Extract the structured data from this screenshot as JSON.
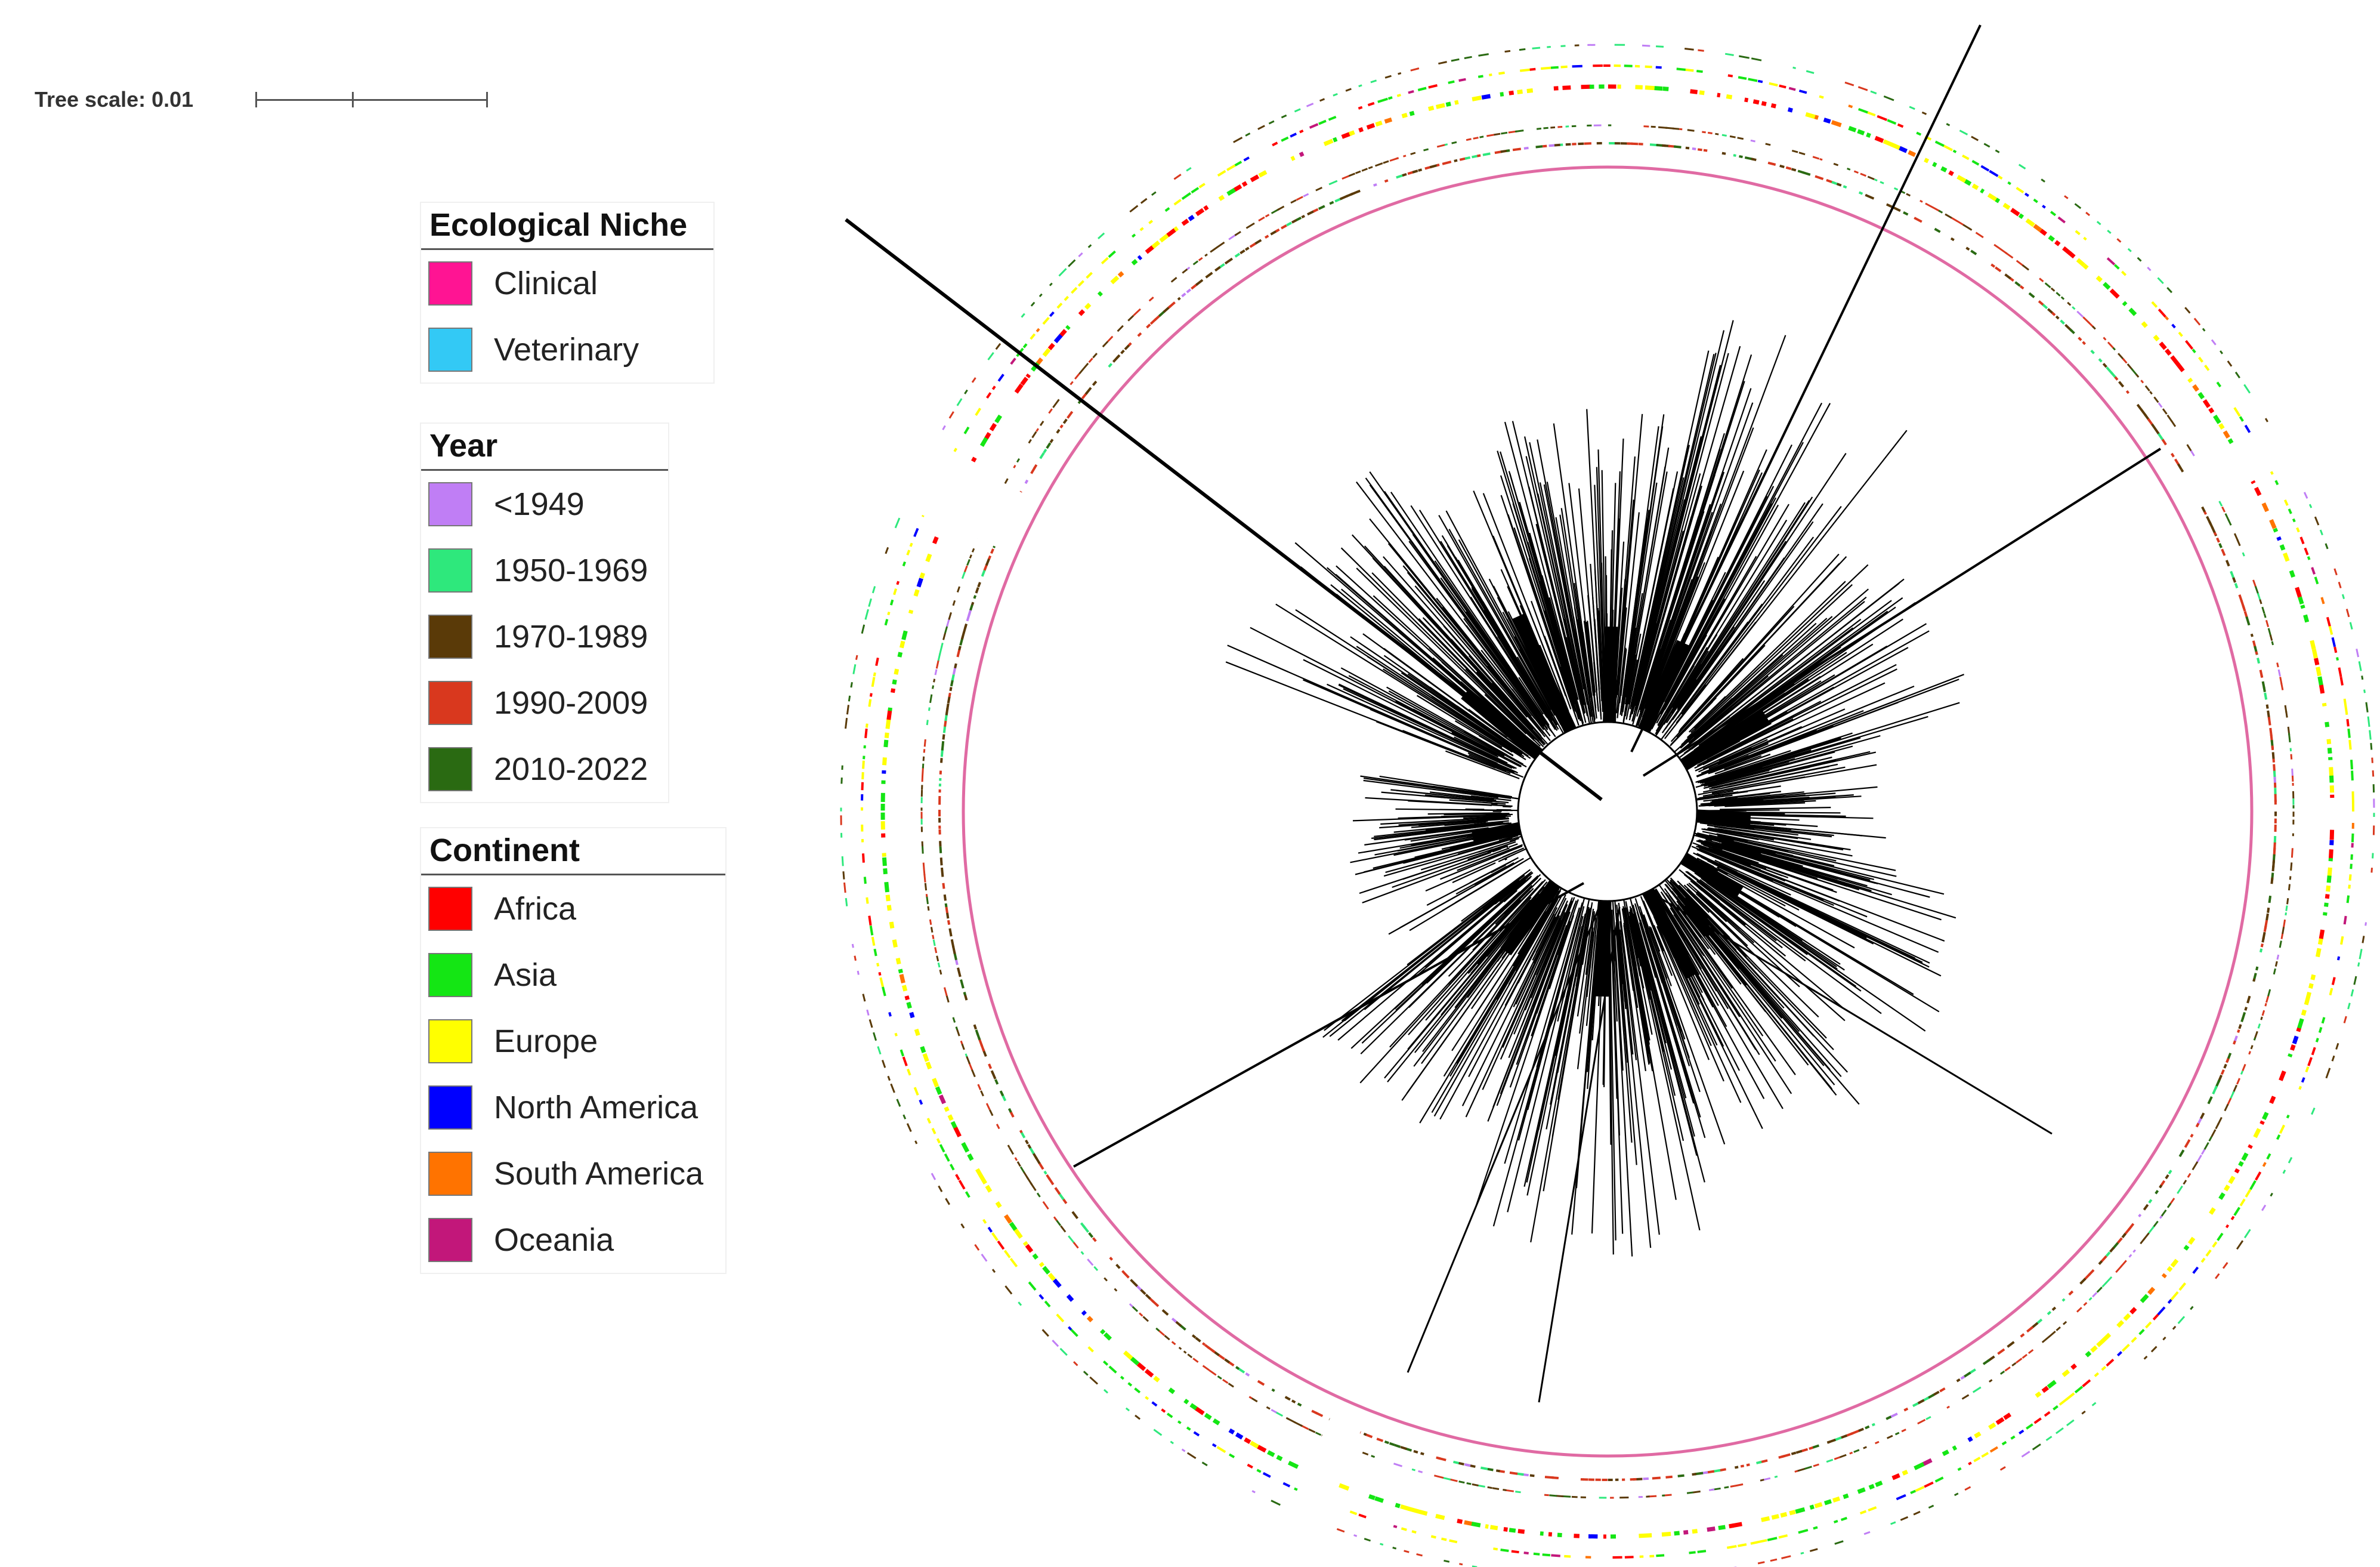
{
  "tree_scale": {
    "label": "Tree scale: 0.01"
  },
  "legends": {
    "niche": {
      "title": "Ecological Niche",
      "items": [
        {
          "label": "Clinical",
          "color": "#ff1493"
        },
        {
          "label": "Veterinary",
          "color": "#33c9f5"
        }
      ]
    },
    "year": {
      "title": "Year",
      "items": [
        {
          "label": "<1949",
          "color": "#c07ef5"
        },
        {
          "label": "1950-1969",
          "color": "#2ee87c"
        },
        {
          "label": "1970-1989",
          "color": "#5a3a08"
        },
        {
          "label": "1990-2009",
          "color": "#d9381e"
        },
        {
          "label": "2010-2022",
          "color": "#2a6a12"
        }
      ]
    },
    "continent": {
      "title": "Continent",
      "items": [
        {
          "label": "Africa",
          "color": "#ff0000"
        },
        {
          "label": "Asia",
          "color": "#14e614"
        },
        {
          "label": "Europe",
          "color": "#ffff00"
        },
        {
          "label": "North America",
          "color": "#0000ff"
        },
        {
          "label": "South America",
          "color": "#ff7300"
        },
        {
          "label": "Oceania",
          "color": "#c2177a"
        }
      ]
    }
  },
  "rings": {
    "niche_ring_color": "#e06aa3"
  }
}
